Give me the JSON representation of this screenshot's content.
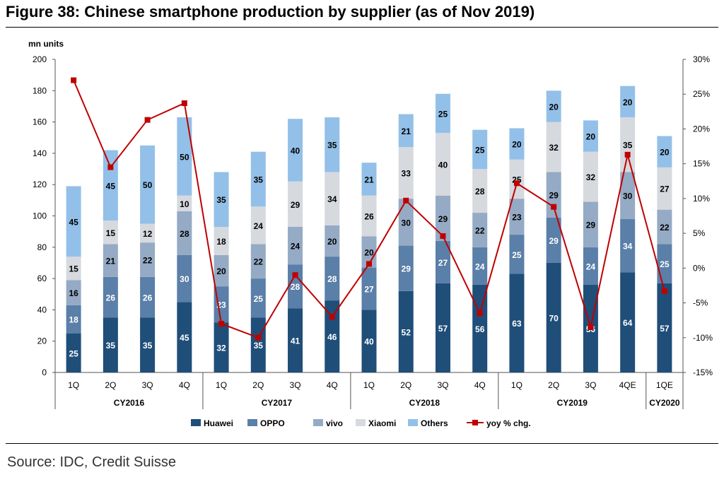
{
  "figure": {
    "title": "Figure 38: Chinese smartphone production by supplier (as of Nov 2019)",
    "source": "Source: IDC, Credit Suisse"
  },
  "chart_data": {
    "type": "bar",
    "stacked": true,
    "unit_label": "mn units",
    "categories": [
      "1Q",
      "2Q",
      "3Q",
      "4Q",
      "1Q",
      "2Q",
      "3Q",
      "4Q",
      "1Q",
      "2Q",
      "3Q",
      "4Q",
      "1Q",
      "2Q",
      "3Q",
      "4QE",
      "1QE"
    ],
    "groups": [
      {
        "label": "CY2016",
        "count": 4
      },
      {
        "label": "CY2017",
        "count": 4
      },
      {
        "label": "CY2018",
        "count": 4
      },
      {
        "label": "CY2019",
        "count": 4
      },
      {
        "label": "CY2020",
        "count": 1
      }
    ],
    "series": [
      {
        "name": "Huawei",
        "color": "#1f4e79",
        "values": [
          25,
          35,
          35,
          45,
          32,
          35,
          41,
          46,
          40,
          52,
          57,
          56,
          63,
          70,
          56,
          64,
          57
        ]
      },
      {
        "name": "OPPO",
        "color": "#5a7fa8",
        "values": [
          18,
          26,
          26,
          30,
          23,
          25,
          28,
          28,
          27,
          29,
          27,
          24,
          25,
          29,
          24,
          34,
          25
        ]
      },
      {
        "name": "vivo",
        "color": "#95aac4",
        "values": [
          16,
          21,
          22,
          28,
          20,
          22,
          24,
          20,
          20,
          30,
          29,
          22,
          23,
          29,
          29,
          30,
          22
        ]
      },
      {
        "name": "Xiaomi",
        "color": "#d6d9de",
        "values": [
          15,
          15,
          12,
          10,
          18,
          24,
          29,
          34,
          26,
          33,
          40,
          28,
          25,
          32,
          32,
          35,
          27
        ]
      },
      {
        "name": "Others",
        "color": "#93c0e8",
        "values": [
          45,
          45,
          50,
          50,
          35,
          35,
          40,
          35,
          21,
          21,
          25,
          25,
          20,
          20,
          20,
          20,
          20
        ]
      }
    ],
    "line_series": {
      "name": "yoy % chg.",
      "color": "#c00000",
      "marker_color": "#c00000",
      "axis": "right",
      "values": [
        27.0,
        14.5,
        21.3,
        23.7,
        -8.0,
        -10.0,
        -1.0,
        -7.0,
        0.6,
        9.7,
        4.6,
        -6.5,
        12.2,
        8.8,
        -8.5,
        16.3,
        -3.3
      ]
    },
    "y_left": {
      "min": 0,
      "max": 200,
      "ticks": [
        0,
        20,
        40,
        60,
        80,
        100,
        120,
        140,
        160,
        180,
        200
      ]
    },
    "y_right": {
      "min": -15,
      "max": 30,
      "ticks": [
        "-15%",
        "-10%",
        "-5%",
        "0%",
        "5%",
        "10%",
        "15%",
        "20%",
        "25%",
        "30%"
      ]
    },
    "grid": false,
    "legend_placement": "bottom"
  }
}
